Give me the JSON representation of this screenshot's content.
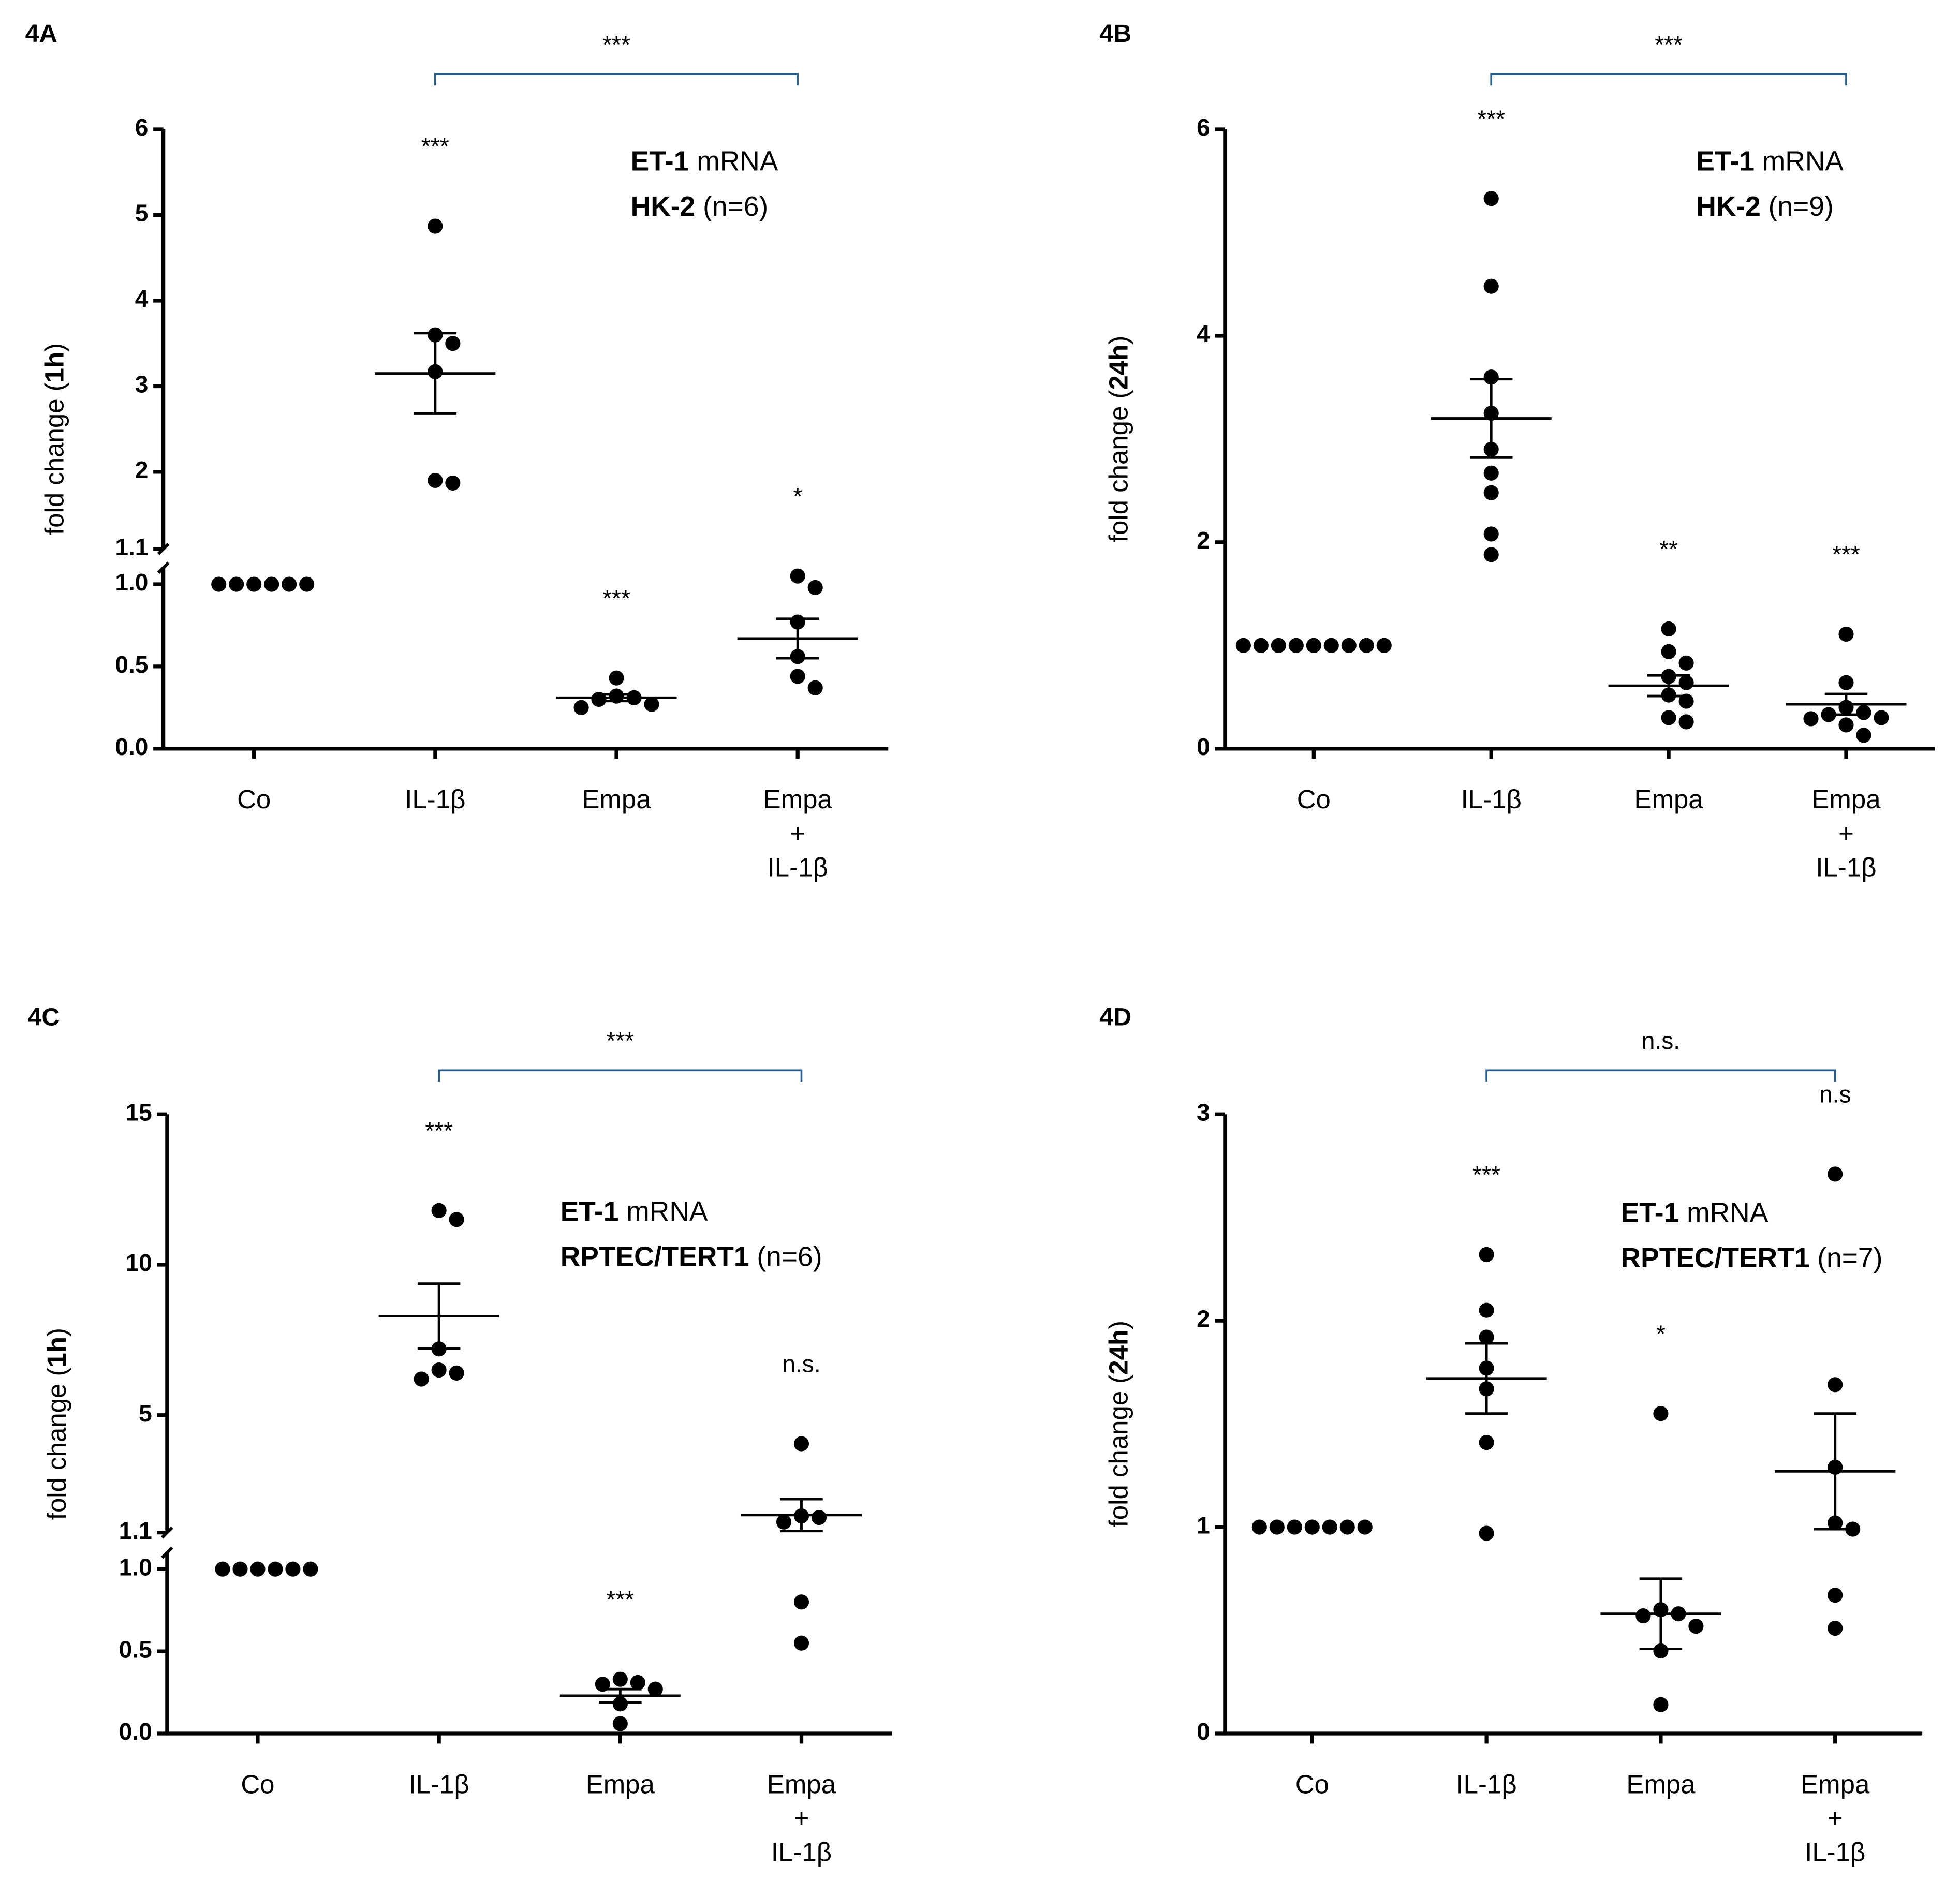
{
  "chart_data": [
    {
      "type": "dotplot",
      "label": "4A",
      "ylabel": [
        {
          "text": "fold change (",
          "bold": false
        },
        {
          "text": "1h",
          "bold": true
        },
        {
          "text": ")",
          "bold": false
        }
      ],
      "legend": [
        [
          {
            "text": "ET-1",
            "bold": true
          },
          {
            "text": " mRNA",
            "bold": false
          }
        ],
        [
          {
            "text": "HK-2",
            "bold": true
          },
          {
            "text": " (n=6)",
            "bold": false
          }
        ]
      ],
      "categories": [
        [
          "Co"
        ],
        [
          "IL-1β"
        ],
        [
          "Empa"
        ],
        [
          "Empa",
          "+",
          "IL-1β"
        ]
      ],
      "points": [
        [
          1,
          1,
          1,
          1,
          1,
          1
        ],
        [
          4.87,
          3.6,
          3.5,
          3.17,
          1.9,
          1.87
        ],
        [
          0.32,
          0.31,
          0.43,
          0.3,
          0.27,
          0.25
        ],
        [
          1.05,
          0.98,
          0.77,
          0.56,
          0.44,
          0.37
        ]
      ],
      "means": [
        null,
        3.15,
        0.31,
        0.67
      ],
      "sem": [
        null,
        0.47,
        0.02,
        0.12
      ],
      "significance": [
        null,
        "***",
        "***",
        "*"
      ],
      "comparison": "***",
      "ylim": [
        0,
        1.1
      ],
      "yticks": [
        {
          "value": 0,
          "label": "0.0"
        },
        0.5,
        {
          "value": 1,
          "label": "1.0"
        }
      ],
      "ylim_upper": [
        1.1,
        6
      ],
      "yticks_upper": [
        1.1,
        2,
        3,
        4,
        5,
        6
      ],
      "color": "#000000"
    },
    {
      "type": "dotplot",
      "label": "4B",
      "ylabel": [
        {
          "text": "fold change (",
          "bold": false
        },
        {
          "text": "24h",
          "bold": true
        },
        {
          "text": ")",
          "bold": false
        }
      ],
      "legend": [
        [
          {
            "text": "ET-1",
            "bold": true
          },
          {
            "text": " mRNA",
            "bold": false
          }
        ],
        [
          {
            "text": "HK-2",
            "bold": true
          },
          {
            "text": " (n=9)",
            "bold": false
          }
        ]
      ],
      "categories": [
        [
          "Co"
        ],
        [
          "IL-1β"
        ],
        [
          "Empa"
        ],
        [
          "Empa",
          "+",
          "IL-1β"
        ]
      ],
      "points": [
        [
          1,
          1,
          1,
          1,
          1,
          1,
          1,
          1,
          1
        ],
        [
          5.33,
          4.48,
          3.6,
          3.25,
          2.9,
          2.67,
          2.48,
          2.08,
          1.88
        ],
        [
          1.16,
          0.94,
          0.83,
          0.7,
          0.64,
          0.52,
          0.46,
          0.3,
          0.26
        ],
        [
          1.11,
          0.64,
          0.4,
          0.35,
          0.33,
          0.3,
          0.29,
          0.23,
          0.13
        ]
      ],
      "means": [
        null,
        3.2,
        0.61,
        0.43
      ],
      "sem": [
        null,
        0.38,
        0.1,
        0.1
      ],
      "significance": [
        null,
        "***",
        "**",
        "***"
      ],
      "comparison": "***",
      "ylim": [
        0,
        6
      ],
      "yticks": [
        0,
        2,
        4,
        6
      ],
      "color": "#000000"
    },
    {
      "type": "dotplot",
      "label": "4C",
      "ylabel": [
        {
          "text": "fold change (",
          "bold": false
        },
        {
          "text": "1h",
          "bold": true
        },
        {
          "text": ")",
          "bold": false
        }
      ],
      "legend": [
        [
          {
            "text": "ET-1",
            "bold": true
          },
          {
            "text": " mRNA",
            "bold": false
          }
        ],
        [
          {
            "text": "RPTEC/TERT1",
            "bold": true
          },
          {
            "text": " (n=6)",
            "bold": false
          }
        ]
      ],
      "categories": [
        [
          "Co"
        ],
        [
          "IL-1β"
        ],
        [
          "Empa"
        ],
        [
          "Empa",
          "+",
          "IL-1β"
        ]
      ],
      "points": [
        [
          1,
          1,
          1,
          1,
          1,
          1
        ],
        [
          11.8,
          11.5,
          7.2,
          6.5,
          6.4,
          6.2
        ],
        [
          0.33,
          0.31,
          0.3,
          0.27,
          0.18,
          0.06
        ],
        [
          4.05,
          1.65,
          1.6,
          1.45,
          0.8,
          0.55
        ]
      ],
      "means": [
        null,
        8.29,
        0.23,
        1.68
      ],
      "sem": [
        null,
        1.08,
        0.04,
        0.53
      ],
      "significance": [
        null,
        "***",
        "***",
        "n.s."
      ],
      "comparison": "***",
      "ylim": [
        0,
        1.1
      ],
      "yticks": [
        {
          "value": 0,
          "label": "0.0"
        },
        0.5,
        {
          "value": 1,
          "label": "1.0"
        }
      ],
      "ylim_upper": [
        1.1,
        15
      ],
      "yticks_upper": [
        1.1,
        5,
        10,
        15
      ],
      "color": "#000000"
    },
    {
      "type": "dotplot",
      "label": "4D",
      "ylabel": [
        {
          "text": "fold change (",
          "bold": false
        },
        {
          "text": "24h",
          "bold": true
        },
        {
          "text": ")",
          "bold": false
        }
      ],
      "legend": [
        [
          {
            "text": "ET-1",
            "bold": true
          },
          {
            "text": " mRNA",
            "bold": false
          }
        ],
        [
          {
            "text": "RPTEC/TERT1",
            "bold": true
          },
          {
            "text": " (n=7)",
            "bold": false
          }
        ]
      ],
      "categories": [
        [
          "Co"
        ],
        [
          "IL-1β"
        ],
        [
          "Empa"
        ],
        [
          "Empa",
          "+",
          "IL-1β"
        ]
      ],
      "points": [
        [
          1,
          1,
          1,
          1,
          1,
          1,
          1
        ],
        [
          2.32,
          2.05,
          1.92,
          1.77,
          1.67,
          1.41,
          0.97
        ],
        [
          1.55,
          0.6,
          0.58,
          0.57,
          0.52,
          0.4,
          0.14
        ],
        [
          2.71,
          1.69,
          1.29,
          1.02,
          0.99,
          0.67,
          0.51
        ]
      ],
      "means": [
        null,
        1.72,
        0.58,
        1.27
      ],
      "sem": [
        null,
        0.17,
        0.17,
        0.28
      ],
      "significance": [
        null,
        "***",
        "*",
        "n.s"
      ],
      "comparison": "n.s.",
      "ylim": [
        0,
        3
      ],
      "yticks": [
        0,
        1,
        2,
        3
      ],
      "color": "#000000"
    }
  ]
}
